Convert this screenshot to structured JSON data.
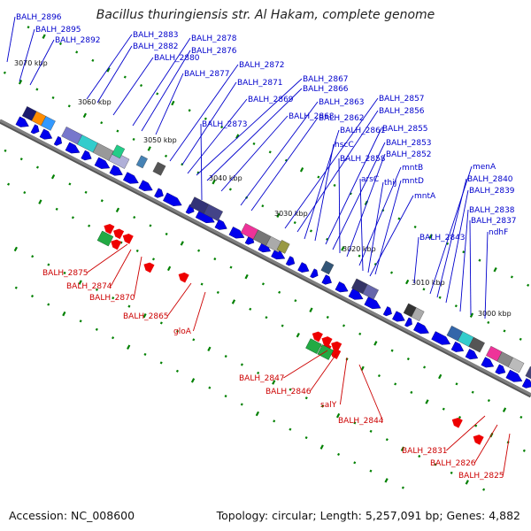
{
  "map": {
    "title": "Bacillus thuringiensis str. Al Hakam, complete genome",
    "accession_text": "Accession: NC_008600",
    "summary_text": "Topology: circular; Length: 5,257,091 bp; Genes: 4,882",
    "colors": {
      "forward_label": "#0000cc",
      "reverse_label": "#cc0000",
      "forward_gene": "#0000ee",
      "reverse_gene": "#ee0000",
      "backbone": "#808080",
      "tick": "#008000"
    },
    "scale_labels": [
      "3070 kbp",
      "3060 kbp",
      "3050 kbp",
      "3040 kbp",
      "3030 kbp",
      "3020 kbp",
      "3010 kbp",
      "3000 kbp"
    ],
    "forward_gene_labels": [
      "BALH_2896",
      "BALH_2895",
      "BALH_2892",
      "BALH_2883",
      "BALH_2882",
      "BALH_2880",
      "BALH_2878",
      "BALH_2876",
      "BALH_2877",
      "BALH_2872",
      "BALH_2871",
      "BALH_2869",
      "BALH_2867",
      "BALH_2866",
      "BALH_2868",
      "BALH_2873",
      "BALH_2863",
      "BALH_2862",
      "BALH_2857",
      "BALH_2856",
      "BALH_2861",
      "hscC",
      "BALH_2855",
      "BALH_2853",
      "BALH_2858",
      "BALH_2852",
      "mntB",
      "arsC",
      "thiJ",
      "mntD",
      "mntA",
      "menA",
      "BALH_2840",
      "BALH_2839",
      "BALH_2838",
      "BALH_2837",
      "ndhF",
      "BALH_2843"
    ],
    "reverse_gene_labels": [
      "BALH_2875",
      "BALH_2874",
      "BALH_2870",
      "BALH_2865",
      "gloA",
      "BALH_2847",
      "BALH_2846",
      "salY",
      "BALH_2844",
      "BALH_2831",
      "BALH_2826",
      "BALH_2825"
    ]
  }
}
